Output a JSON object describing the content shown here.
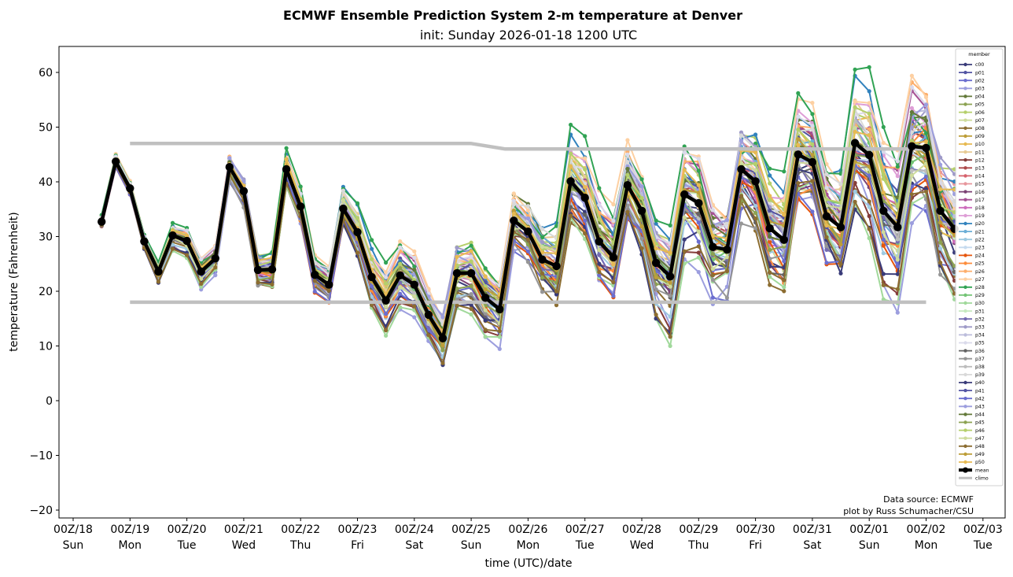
{
  "chart_data": {
    "type": "line",
    "title": "ECMWF Ensemble Prediction System 2-m temperature at Denver",
    "subtitle": "init: Sunday 2026-01-18 1200 UTC",
    "xlabel": "time (UTC)/date",
    "ylabel": "temperature (Fahrenheit)",
    "ylim": [
      -21.5,
      65
    ],
    "xlim_days": [
      0,
      16
    ],
    "yticks": [
      60,
      50,
      40,
      30,
      20,
      10,
      0,
      -10,
      -20
    ],
    "ytick_labels": [
      "60",
      "50",
      "40",
      "30",
      "20",
      "10",
      "0",
      "−10",
      "−20"
    ],
    "xticks": [
      {
        "day": 0,
        "line1": "00Z/18",
        "line2": "Sun"
      },
      {
        "day": 1,
        "line1": "00Z/19",
        "line2": "Mon"
      },
      {
        "day": 2,
        "line1": "00Z/20",
        "line2": "Tue"
      },
      {
        "day": 3,
        "line1": "00Z/21",
        "line2": "Wed"
      },
      {
        "day": 4,
        "line1": "00Z/22",
        "line2": "Thu"
      },
      {
        "day": 5,
        "line1": "00Z/23",
        "line2": "Fri"
      },
      {
        "day": 6,
        "line1": "00Z/24",
        "line2": "Sat"
      },
      {
        "day": 7,
        "line1": "00Z/25",
        "line2": "Sun"
      },
      {
        "day": 8,
        "line1": "00Z/26",
        "line2": "Mon"
      },
      {
        "day": 9,
        "line1": "00Z/27",
        "line2": "Tue"
      },
      {
        "day": 10,
        "line1": "00Z/28",
        "line2": "Wed"
      },
      {
        "day": 11,
        "line1": "00Z/29",
        "line2": "Thu"
      },
      {
        "day": 12,
        "line1": "00Z/30",
        "line2": "Fri"
      },
      {
        "day": 13,
        "line1": "00Z/31",
        "line2": "Sat"
      },
      {
        "day": 14,
        "line1": "00Z/01",
        "line2": "Sun"
      },
      {
        "day": 15,
        "line1": "00Z/02",
        "line2": "Mon"
      },
      {
        "day": 16,
        "line1": "00Z/03",
        "line2": "Tue"
      }
    ],
    "time_start_day": 0.5,
    "time_step_hours": 6,
    "mean": {
      "name": "mean",
      "color": "#000000",
      "values": [
        32.7,
        43.7,
        38.8,
        29.1,
        23.6,
        30.2,
        29.2,
        23.6,
        26.0,
        42.7,
        38.3,
        23.9,
        24.0,
        42.3,
        35.5,
        23.0,
        21.2,
        35.1,
        30.8,
        22.6,
        18.3,
        22.9,
        21.2,
        15.7,
        11.4,
        23.3,
        23.3,
        18.8,
        16.7,
        32.9,
        30.9,
        25.8,
        24.6,
        40.1,
        37.1,
        29.1,
        26.2,
        39.4,
        34.7,
        25.2,
        22.7,
        37.7,
        36.1,
        28.1,
        27.6,
        42.3,
        40.1,
        31.5,
        29.4,
        45.0,
        43.6,
        33.7,
        31.7,
        47.1,
        44.9,
        34.7,
        31.7,
        46.5,
        46.2,
        34.7,
        31.4
      ]
    },
    "climo": {
      "name": "climo",
      "color": "#c0c0c0",
      "upper": [
        {
          "day": 1,
          "value": 47
        },
        {
          "day": 7,
          "value": 47
        },
        {
          "day": 7.6,
          "value": 46
        },
        {
          "day": 15,
          "value": 46
        }
      ],
      "lower": [
        {
          "day": 1,
          "value": 18
        },
        {
          "day": 15,
          "value": 18
        }
      ]
    },
    "members": [
      {
        "name": "c00",
        "color": "#393b79",
        "bias": -0.2,
        "spread": 1.0,
        "phase": 0.0
      },
      {
        "name": "p01",
        "color": "#5254a3",
        "bias": 0.3,
        "spread": 0.9,
        "phase": 0.7
      },
      {
        "name": "p02",
        "color": "#6b6ecf",
        "bias": -0.6,
        "spread": 1.2,
        "phase": 1.4
      },
      {
        "name": "p03",
        "color": "#9c9ede",
        "bias": -0.9,
        "spread": 1.5,
        "phase": 2.1
      },
      {
        "name": "p04",
        "color": "#637939",
        "bias": 0.5,
        "spread": 0.8,
        "phase": 2.8
      },
      {
        "name": "p05",
        "color": "#8ca252",
        "bias": -0.1,
        "spread": 1.1,
        "phase": 3.5
      },
      {
        "name": "p06",
        "color": "#b5cf6b",
        "bias": 0.6,
        "spread": 1.0,
        "phase": 4.2
      },
      {
        "name": "p07",
        "color": "#cedb9c",
        "bias": -0.3,
        "spread": 0.9,
        "phase": 4.9
      },
      {
        "name": "p08",
        "color": "#8c6d31",
        "bias": -0.7,
        "spread": 1.1,
        "phase": 5.6
      },
      {
        "name": "p09",
        "color": "#bd9e39",
        "bias": 0.1,
        "spread": 0.7,
        "phase": 0.35
      },
      {
        "name": "p10",
        "color": "#e7ba52",
        "bias": 0.2,
        "spread": 1.3,
        "phase": 1.05
      },
      {
        "name": "p11",
        "color": "#e7cb94",
        "bias": 0.4,
        "spread": 1.0,
        "phase": 1.75
      },
      {
        "name": "p12",
        "color": "#843c39",
        "bias": -0.8,
        "spread": 1.2,
        "phase": 2.45
      },
      {
        "name": "p13",
        "color": "#ad494a",
        "bias": 0.2,
        "spread": 1.0,
        "phase": 3.15
      },
      {
        "name": "p14",
        "color": "#d6616b",
        "bias": 0.0,
        "spread": 0.8,
        "phase": 3.85
      },
      {
        "name": "p15",
        "color": "#e7969c",
        "bias": 0.3,
        "spread": 0.9,
        "phase": 4.55
      },
      {
        "name": "p16",
        "color": "#7b4173",
        "bias": -0.4,
        "spread": 1.0,
        "phase": 5.25
      },
      {
        "name": "p17",
        "color": "#a55194",
        "bias": 0.5,
        "spread": 1.1,
        "phase": 5.95
      },
      {
        "name": "p18",
        "color": "#ce6dbd",
        "bias": 0.1,
        "spread": 0.9,
        "phase": 0.2
      },
      {
        "name": "p19",
        "color": "#de9ed6",
        "bias": 0.7,
        "spread": 0.8,
        "phase": 0.9
      },
      {
        "name": "p20",
        "color": "#3182bd",
        "bias": 0.8,
        "spread": 1.2,
        "phase": 1.6
      },
      {
        "name": "p21",
        "color": "#6baed6",
        "bias": 0.2,
        "spread": 1.0,
        "phase": 2.3
      },
      {
        "name": "p22",
        "color": "#9ecae1",
        "bias": -0.5,
        "spread": 1.1,
        "phase": 3.0
      },
      {
        "name": "p23",
        "color": "#c6dbef",
        "bias": 0.0,
        "spread": 1.0,
        "phase": 3.7
      },
      {
        "name": "p24",
        "color": "#e6550d",
        "bias": -0.6,
        "spread": 1.0,
        "phase": 4.4
      },
      {
        "name": "p25",
        "color": "#fd8d3c",
        "bias": -0.3,
        "spread": 1.3,
        "phase": 5.1
      },
      {
        "name": "p26",
        "color": "#fdae6b",
        "bias": 0.6,
        "spread": 1.1,
        "phase": 5.8
      },
      {
        "name": "p27",
        "color": "#fdd0a2",
        "bias": 0.9,
        "spread": 1.2,
        "phase": 0.5
      },
      {
        "name": "p28",
        "color": "#31a354",
        "bias": 1.0,
        "spread": 1.6,
        "phase": 1.2
      },
      {
        "name": "p29",
        "color": "#74c476",
        "bias": 0.1,
        "spread": 0.9,
        "phase": 1.9
      },
      {
        "name": "p30",
        "color": "#a1d99b",
        "bias": -1.0,
        "spread": 1.5,
        "phase": 2.6
      },
      {
        "name": "p31",
        "color": "#c7e9c0",
        "bias": 0.0,
        "spread": 0.8,
        "phase": 3.3
      },
      {
        "name": "p32",
        "color": "#756bb1",
        "bias": -0.2,
        "spread": 1.0,
        "phase": 4.0
      },
      {
        "name": "p33",
        "color": "#9e9ac8",
        "bias": 0.4,
        "spread": 1.1,
        "phase": 4.7
      },
      {
        "name": "p34",
        "color": "#bcbddc",
        "bias": 0.2,
        "spread": 0.9,
        "phase": 5.4
      },
      {
        "name": "p35",
        "color": "#dadaeb",
        "bias": 0.7,
        "spread": 1.0,
        "phase": 6.1
      },
      {
        "name": "p36",
        "color": "#636363",
        "bias": -0.4,
        "spread": 1.1,
        "phase": 0.15
      },
      {
        "name": "p37",
        "color": "#969696",
        "bias": -0.6,
        "spread": 1.2,
        "phase": 0.85
      },
      {
        "name": "p38",
        "color": "#bdbdbd",
        "bias": 0.0,
        "spread": 1.0,
        "phase": 1.55
      },
      {
        "name": "p39",
        "color": "#d9d9d9",
        "bias": 0.5,
        "spread": 0.9,
        "phase": 2.25
      },
      {
        "name": "p40",
        "color": "#393b79",
        "bias": -0.8,
        "spread": 1.3,
        "phase": 2.95
      },
      {
        "name": "p41",
        "color": "#5254a3",
        "bias": 0.1,
        "spread": 0.9,
        "phase": 3.65
      },
      {
        "name": "p42",
        "color": "#6b6ecf",
        "bias": -0.5,
        "spread": 1.1,
        "phase": 4.35
      },
      {
        "name": "p43",
        "color": "#9c9ede",
        "bias": 0.3,
        "spread": 1.0,
        "phase": 5.05
      },
      {
        "name": "p44",
        "color": "#637939",
        "bias": 0.2,
        "spread": 0.8,
        "phase": 5.75
      },
      {
        "name": "p45",
        "color": "#8ca252",
        "bias": -0.2,
        "spread": 1.0,
        "phase": 0.6
      },
      {
        "name": "p46",
        "color": "#b5cf6b",
        "bias": 0.4,
        "spread": 0.9,
        "phase": 1.3
      },
      {
        "name": "p47",
        "color": "#cedb9c",
        "bias": -0.1,
        "spread": 1.1,
        "phase": 2.0
      },
      {
        "name": "p48",
        "color": "#8c6d31",
        "bias": -0.9,
        "spread": 1.2,
        "phase": 2.7
      },
      {
        "name": "p49",
        "color": "#bd9e39",
        "bias": 0.0,
        "spread": 0.8,
        "phase": 3.4
      },
      {
        "name": "p50",
        "color": "#e7ba52",
        "bias": 0.3,
        "spread": 1.0,
        "phase": 4.1
      }
    ],
    "legend": {
      "title": "member",
      "placement": "right",
      "entries": [
        "c00",
        "p01",
        "p02",
        "p03",
        "p04",
        "p05",
        "p06",
        "p07",
        "p08",
        "p09",
        "p10",
        "p11",
        "p12",
        "p13",
        "p14",
        "p15",
        "p16",
        "p17",
        "p18",
        "p19",
        "p20",
        "p21",
        "p22",
        "p23",
        "p24",
        "p25",
        "p26",
        "p27",
        "p28",
        "p29",
        "p30",
        "p31",
        "p32",
        "p33",
        "p34",
        "p35",
        "p36",
        "p37",
        "p38",
        "p39",
        "p40",
        "p41",
        "p42",
        "p43",
        "p44",
        "p45",
        "p46",
        "p47",
        "p48",
        "p49",
        "p50",
        "mean",
        "climo"
      ]
    },
    "annotation": {
      "line1": "Data source: ECMWF",
      "line2": "plot by Russ Schumacher/CSU"
    },
    "grid": false
  }
}
